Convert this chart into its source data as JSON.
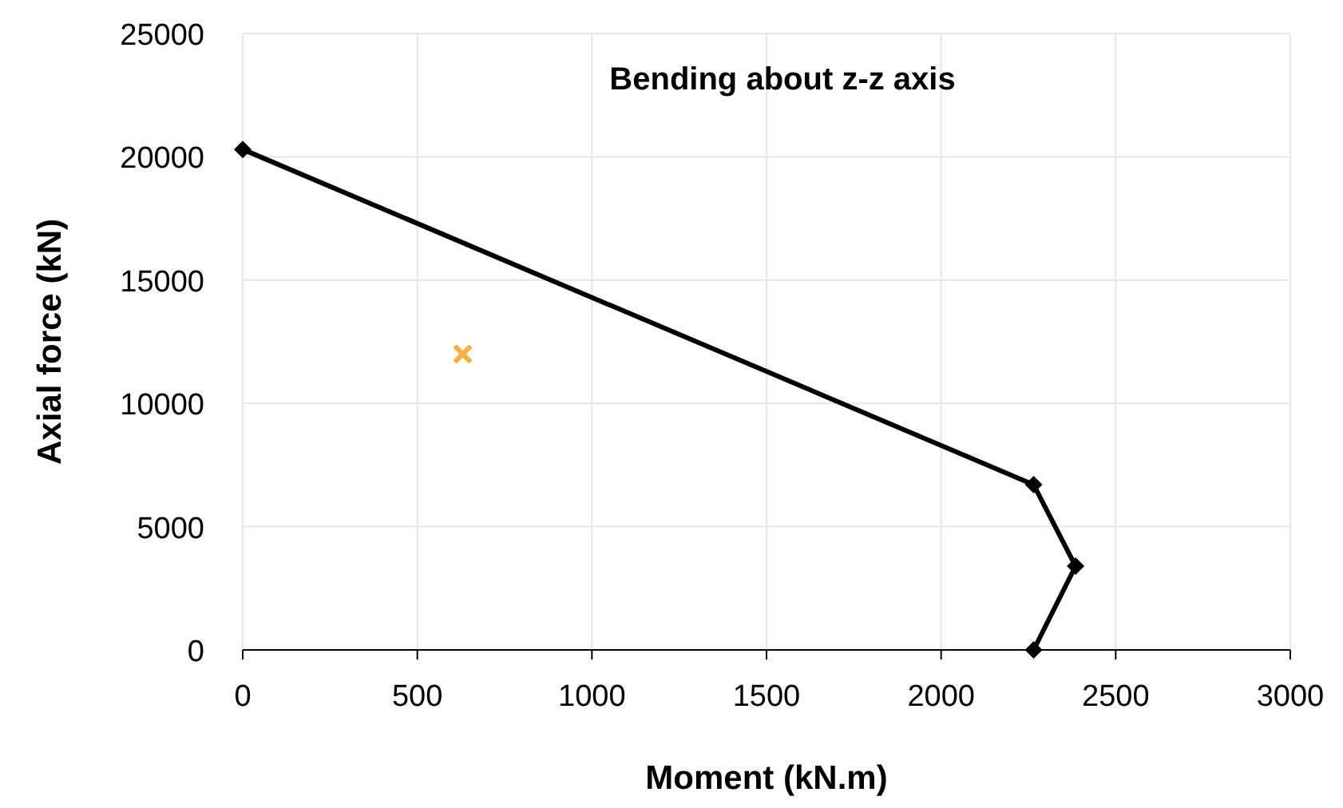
{
  "chart_data": {
    "type": "line",
    "title": "Bending about z-z axis",
    "xlabel": "Moment (kN.m)",
    "ylabel": "Axial force (kN)",
    "xlim": [
      0,
      3000
    ],
    "xticks": [
      0,
      500,
      1000,
      1500,
      2000,
      2500,
      3000
    ],
    "ylim": [
      0,
      25000
    ],
    "yticks": [
      0,
      5000,
      10000,
      15000,
      20000,
      25000
    ],
    "grid": true,
    "series": [
      {
        "color": "#000000",
        "marker": "diamond",
        "line_style": "solid",
        "x": [
          0,
          2265,
          2385,
          2265
        ],
        "values": [
          20300,
          6700,
          3400,
          0
        ]
      },
      {
        "type": "scatter",
        "color": "#f5b041",
        "marker": "cross",
        "x": [
          630
        ],
        "values": [
          12000
        ]
      }
    ]
  }
}
